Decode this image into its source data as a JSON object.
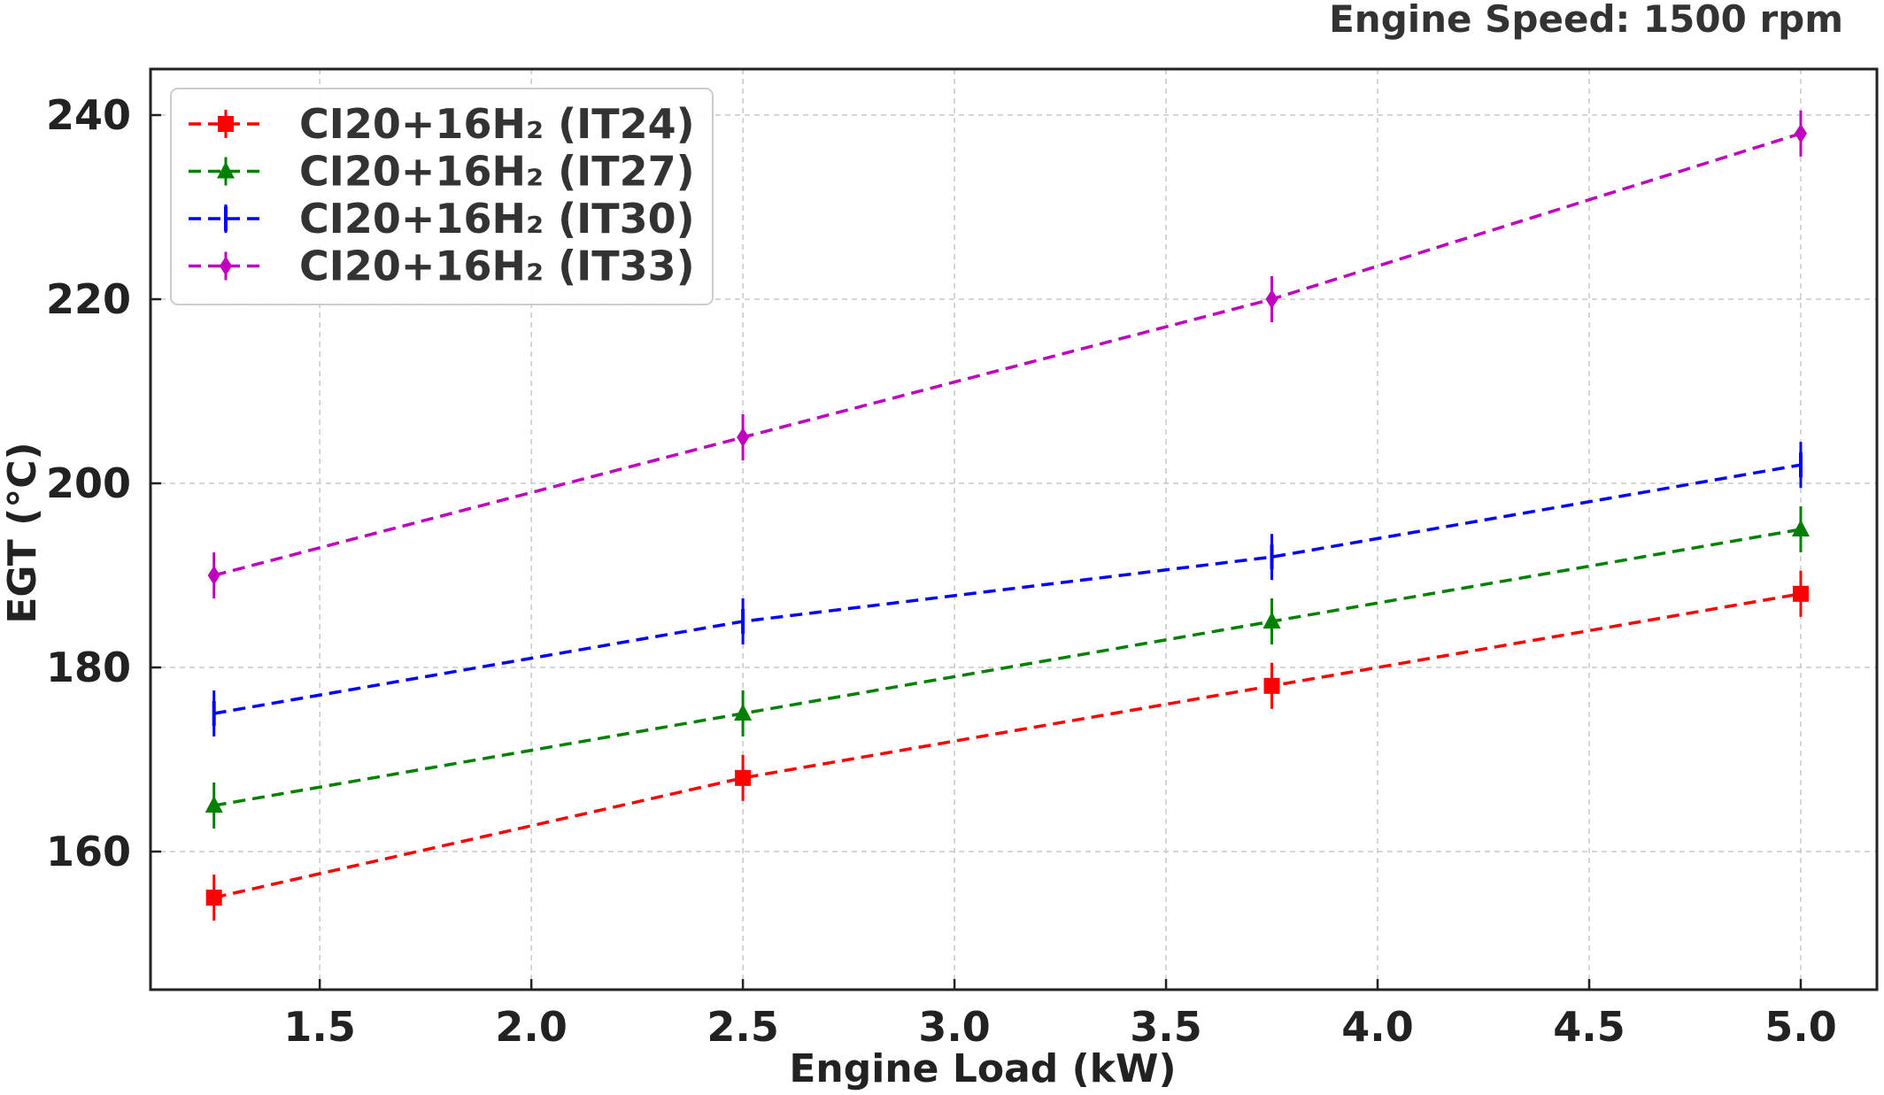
{
  "chart_data": {
    "type": "line",
    "title": "Engine Speed: 1500 rpm",
    "xlabel": "Engine Load (kW)",
    "ylabel": "EGT (°C)",
    "xlim": [
      1.1,
      5.18
    ],
    "ylim": [
      145,
      245
    ],
    "x_ticks": [
      "1.5",
      "2.0",
      "2.5",
      "3.0",
      "3.5",
      "4.0",
      "4.5",
      "5.0"
    ],
    "x_tick_values": [
      1.5,
      2.0,
      2.5,
      3.0,
      3.5,
      4.0,
      4.5,
      5.0
    ],
    "y_ticks": [
      "160",
      "180",
      "200",
      "220",
      "240"
    ],
    "y_tick_values": [
      160,
      180,
      200,
      220,
      240
    ],
    "grid": true,
    "legend_position": "top-left",
    "x": [
      1.25,
      2.5,
      3.75,
      5.0
    ],
    "series": [
      {
        "name": "CI20+16H₂ (IT24)",
        "color": "#ff0000",
        "marker": "square",
        "values": [
          155,
          168,
          178,
          188
        ],
        "error": [
          2.5,
          2.5,
          2.5,
          2.5
        ]
      },
      {
        "name": "CI20+16H₂ (IT27)",
        "color": "#008000",
        "marker": "triangle",
        "values": [
          165,
          175,
          185,
          195
        ],
        "error": [
          2.5,
          2.5,
          2.5,
          2.5
        ]
      },
      {
        "name": "CI20+16H₂ (IT30)",
        "color": "#0000ff",
        "marker": "vline",
        "values": [
          175,
          185,
          192,
          202
        ],
        "error": [
          2.5,
          2.5,
          2.5,
          2.5
        ]
      },
      {
        "name": "CI20+16H₂ (IT33)",
        "color": "#bf00bf",
        "marker": "diamond",
        "values": [
          190,
          205,
          220,
          238
        ],
        "error": [
          2.5,
          2.5,
          2.5,
          2.5
        ]
      }
    ]
  }
}
